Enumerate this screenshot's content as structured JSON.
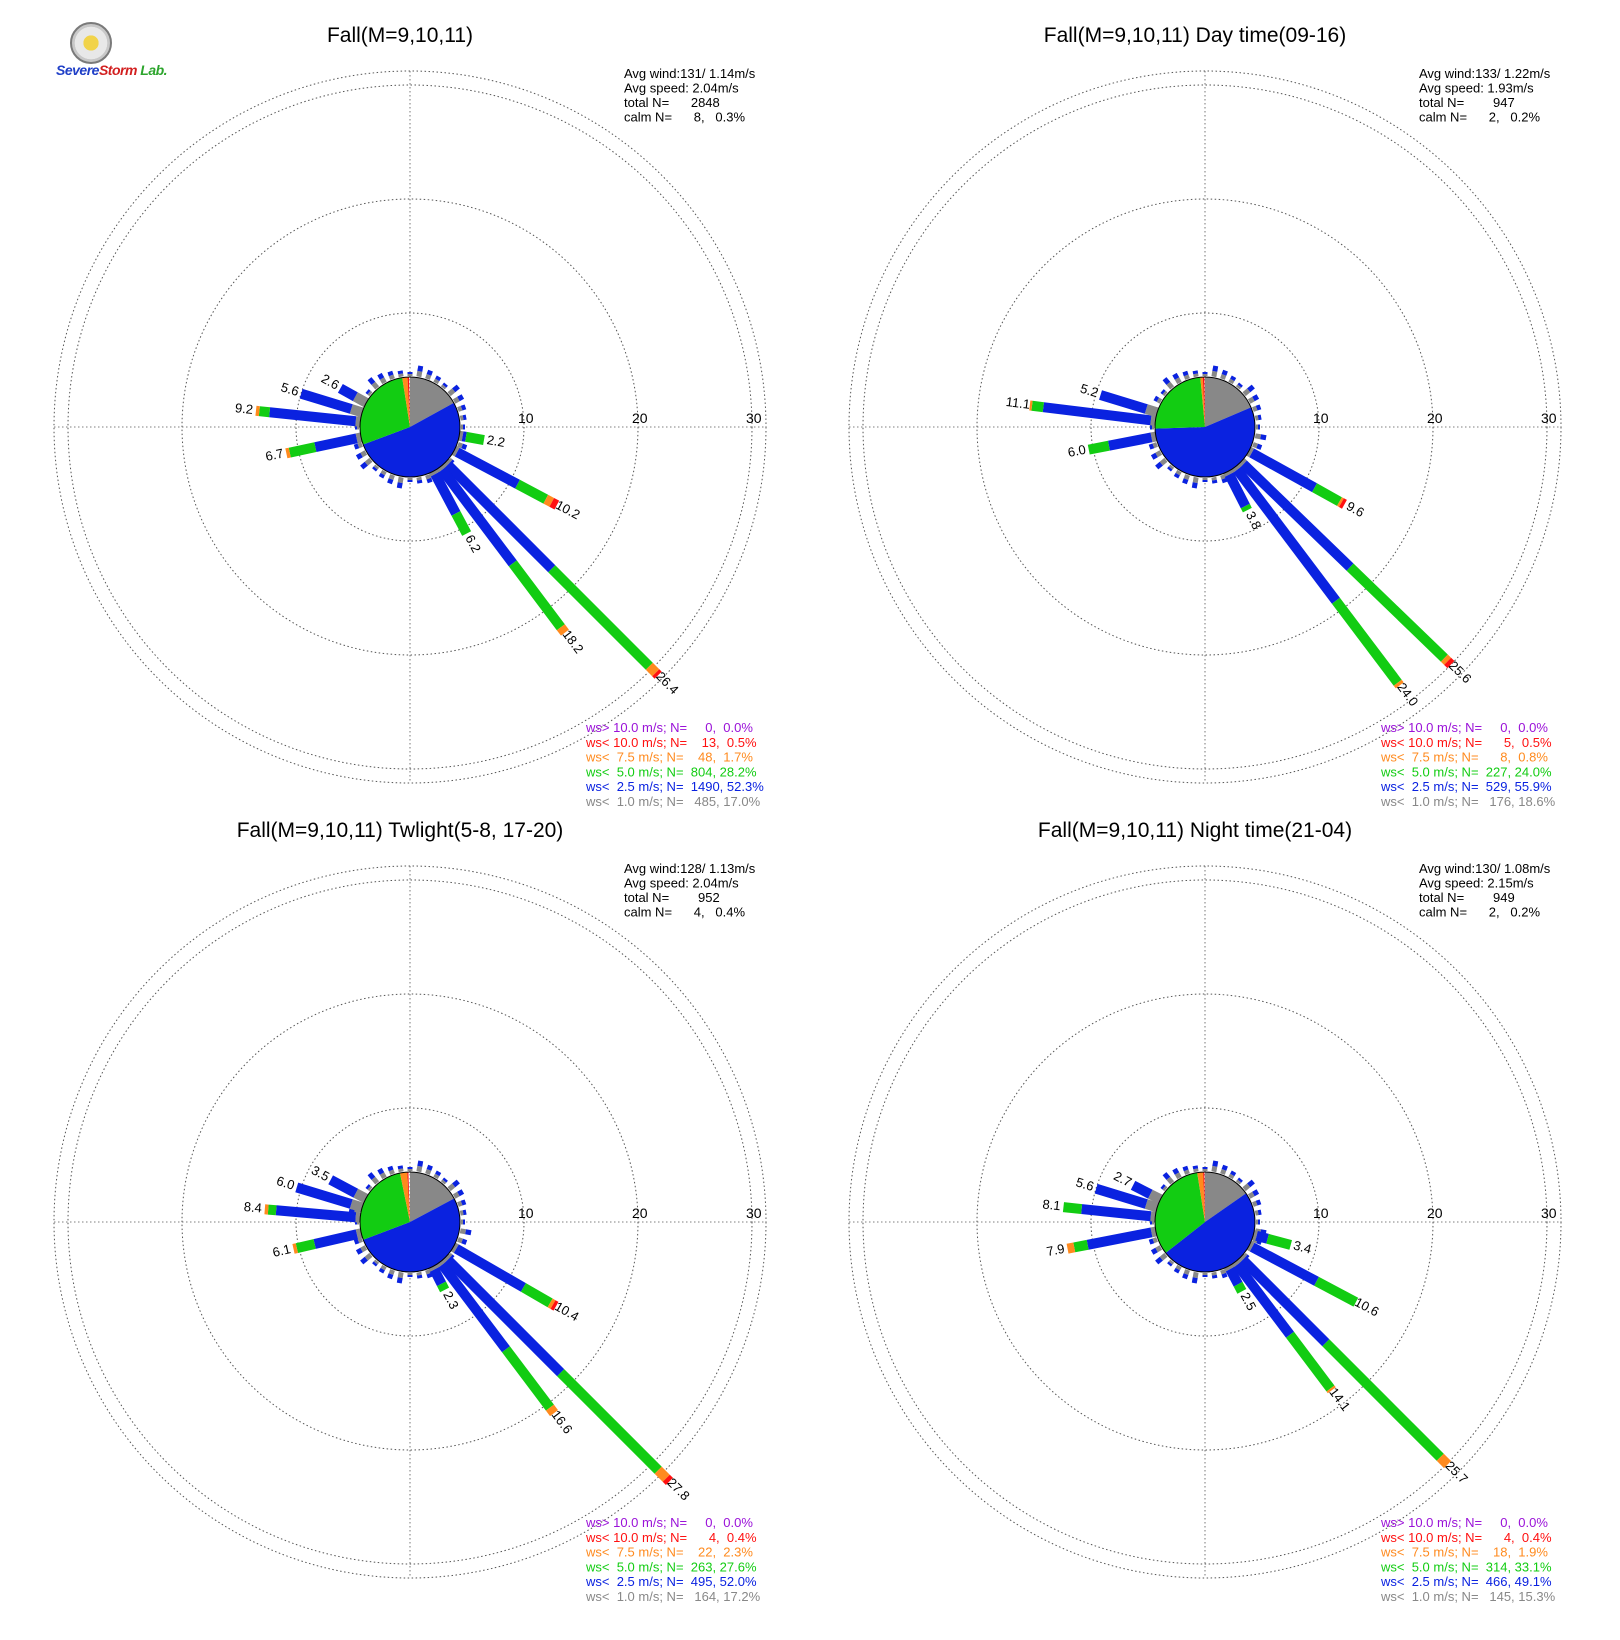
{
  "logo": {
    "text_severe": "Severe",
    "text_storm": "Storm",
    "text_lab": "Lab."
  },
  "colors": {
    "calm_class": "#888888",
    "ws_lt_2_5": "#0a22e0",
    "ws_lt_5_0": "#12cc12",
    "ws_lt_7_5": "#ff8a1e",
    "ws_lt_10_0": "#ff1010",
    "ws_gt_10_0": "#9a12d8"
  },
  "chart_data": [
    {
      "type": "wind-rose",
      "title": "Fall(M=9,10,11)",
      "rings": [
        10,
        20,
        30
      ],
      "stats": [
        "Avg wind:131/ 1.14m/s",
        "Avg speed: 2.04m/s",
        "total N=      2848",
        "calm N=      8,   0.3%"
      ],
      "legend": [
        {
          "text": "ws> 10.0 m/s; N=     0,  0.0%",
          "color": "#9a12d8"
        },
        {
          "text": "ws< 10.0 m/s; N=    13,  0.5%",
          "color": "#ff1010"
        },
        {
          "text": "ws<  7.5 m/s; N=    48,  1.7%",
          "color": "#ff8a1e"
        },
        {
          "text": "ws<  5.0 m/s; N=  804, 28.2%",
          "color": "#12cc12"
        },
        {
          "text": "ws<  2.5 m/s; N=  1490, 52.3%",
          "color": "#0a22e0"
        },
        {
          "text": "ws<  1.0 m/s; N=   485, 17.0%",
          "color": "#888888"
        }
      ],
      "pie": [
        17.0,
        52.3,
        28.2,
        1.7,
        0.5,
        0.0
      ],
      "petals": [
        {
          "dir": 100,
          "total": 2.2,
          "label": "2.2",
          "parts": [
            0.3,
            0.3,
            1.6
          ]
        },
        {
          "dir": 118,
          "total": 10.2,
          "label": "10.2",
          "parts": [
            0.3,
            6.0,
            2.8,
            0.6,
            0.5
          ]
        },
        {
          "dir": 135,
          "total": 26.4,
          "label": "26.4",
          "parts": [
            0.3,
            12.9,
            12.1,
            0.8,
            0.3
          ]
        },
        {
          "dir": 143,
          "total": 18.2,
          "label": "18.2",
          "parts": [
            0.3,
            10.3,
            7.0,
            0.6
          ]
        },
        {
          "dir": 152,
          "total": 6.2,
          "label": "6.2",
          "parts": [
            0.3,
            3.9,
            2.0
          ]
        },
        {
          "dir": 276,
          "total": 9.2,
          "label": "9.2",
          "parts": [
            0.4,
            7.6,
            0.9,
            0.3
          ]
        },
        {
          "dir": 258,
          "total": 6.7,
          "label": "6.7",
          "parts": [
            0.4,
            3.7,
            2.3,
            0.3
          ]
        },
        {
          "dir": 287,
          "total": 5.6,
          "label": "5.6",
          "parts": [
            1.0,
            4.6
          ]
        },
        {
          "dir": 299,
          "total": 2.6,
          "label": "2.6",
          "parts": [
            1.1,
            1.5
          ]
        }
      ]
    },
    {
      "type": "wind-rose",
      "title": "Fall(M=9,10,11) Day time(09-16)",
      "rings": [
        10,
        20,
        30
      ],
      "stats": [
        "Avg wind:133/ 1.22m/s",
        "Avg speed: 1.93m/s",
        "total N=        947",
        "calm N=      2,   0.2%"
      ],
      "legend": [
        {
          "text": "ws> 10.0 m/s; N=     0,  0.0%",
          "color": "#9a12d8"
        },
        {
          "text": "ws< 10.0 m/s; N=      5,  0.5%",
          "color": "#ff1010"
        },
        {
          "text": "ws<  7.5 m/s; N=      8,  0.8%",
          "color": "#ff8a1e"
        },
        {
          "text": "ws<  5.0 m/s; N=  227, 24.0%",
          "color": "#12cc12"
        },
        {
          "text": "ws<  2.5 m/s; N=  529, 55.9%",
          "color": "#0a22e0"
        },
        {
          "text": "ws<  1.0 m/s; N=   176, 18.6%",
          "color": "#888888"
        }
      ],
      "pie": [
        18.6,
        55.9,
        24.0,
        0.8,
        0.5,
        0.0
      ],
      "petals": [
        {
          "dir": 119,
          "total": 9.6,
          "label": "9.6",
          "parts": [
            0.3,
            6.3,
            2.5,
            0.2,
            0.3
          ]
        },
        {
          "dir": 134,
          "total": 25.6,
          "label": "25.6",
          "parts": [
            0.3,
            13.0,
            11.5,
            0.4,
            0.4
          ]
        },
        {
          "dir": 143,
          "total": 24.0,
          "label": "24.0",
          "parts": [
            0.3,
            14.4,
            9.0,
            0.3
          ]
        },
        {
          "dir": 153,
          "total": 3.8,
          "label": "3.8",
          "parts": [
            0.3,
            3.1,
            0.4
          ]
        },
        {
          "dir": 277,
          "total": 11.1,
          "label": "11.1",
          "parts": [
            0.4,
            9.5,
            1.0,
            0.2
          ]
        },
        {
          "dir": 259,
          "total": 6.0,
          "label": "6.0",
          "parts": [
            0.4,
            3.8,
            1.8
          ]
        },
        {
          "dir": 287,
          "total": 5.2,
          "label": "5.2",
          "parts": [
            1.0,
            4.2
          ]
        }
      ]
    },
    {
      "type": "wind-rose",
      "title": "Fall(M=9,10,11) Twlight(5-8, 17-20)",
      "rings": [
        10,
        20,
        30
      ],
      "stats": [
        "Avg wind:128/ 1.13m/s",
        "Avg speed: 2.04m/s",
        "total N=        952",
        "calm N=      4,   0.4%"
      ],
      "legend": [
        {
          "text": "ws> 10.0 m/s; N=     0,  0.0%",
          "color": "#9a12d8"
        },
        {
          "text": "ws< 10.0 m/s; N=      4,  0.4%",
          "color": "#ff1010"
        },
        {
          "text": "ws<  7.5 m/s; N=    22,  2.3%",
          "color": "#ff8a1e"
        },
        {
          "text": "ws<  5.0 m/s; N=  263, 27.6%",
          "color": "#12cc12"
        },
        {
          "text": "ws<  2.5 m/s; N=  495, 52.0%",
          "color": "#0a22e0"
        },
        {
          "text": "ws<  1.0 m/s; N=   164, 17.2%",
          "color": "#888888"
        }
      ],
      "pie": [
        17.2,
        52.0,
        27.6,
        2.3,
        0.4,
        0.0
      ],
      "petals": [
        {
          "dir": 120,
          "total": 10.4,
          "label": "10.4",
          "parts": [
            0.3,
            6.8,
            2.7,
            0.3,
            0.3
          ]
        },
        {
          "dir": 135,
          "total": 27.8,
          "label": "27.8",
          "parts": [
            0.3,
            14.0,
            12.1,
            1.0,
            0.4
          ]
        },
        {
          "dir": 143,
          "total": 16.6,
          "label": "16.6",
          "parts": [
            0.3,
            9.3,
            6.4,
            0.6
          ]
        },
        {
          "dir": 153,
          "total": 2.3,
          "label": "2.3",
          "parts": [
            0.3,
            1.4,
            0.6
          ]
        },
        {
          "dir": 275,
          "total": 8.4,
          "label": "8.4",
          "parts": [
            0.4,
            7.0,
            0.7,
            0.3
          ]
        },
        {
          "dir": 257,
          "total": 6.1,
          "label": "6.1",
          "parts": [
            0.4,
            3.8,
            1.6,
            0.3
          ]
        },
        {
          "dir": 287,
          "total": 6.0,
          "label": "6.0",
          "parts": [
            1.0,
            5.0
          ]
        },
        {
          "dir": 298,
          "total": 3.5,
          "label": "3.5",
          "parts": [
            1.0,
            2.5
          ]
        }
      ]
    },
    {
      "type": "wind-rose",
      "title": "Fall(M=9,10,11) Night time(21-04)",
      "rings": [
        10,
        20,
        30
      ],
      "stats": [
        "Avg wind:130/ 1.08m/s",
        "Avg speed: 2.15m/s",
        "total N=        949",
        "calm N=      2,   0.2%"
      ],
      "legend": [
        {
          "text": "ws> 10.0 m/s; N=     0,  0.0%",
          "color": "#9a12d8"
        },
        {
          "text": "ws< 10.0 m/s; N=      4,  0.4%",
          "color": "#ff1010"
        },
        {
          "text": "ws<  7.5 m/s; N=    18,  1.9%",
          "color": "#ff8a1e"
        },
        {
          "text": "ws<  5.0 m/s; N=  314, 33.1%",
          "color": "#12cc12"
        },
        {
          "text": "ws<  2.5 m/s; N=  466, 49.1%",
          "color": "#0a22e0"
        },
        {
          "text": "ws<  1.0 m/s; N=   145, 15.3%",
          "color": "#888888"
        }
      ],
      "pie": [
        15.3,
        49.1,
        33.1,
        1.9,
        0.4,
        0.0
      ],
      "petals": [
        {
          "dir": 105,
          "total": 3.4,
          "label": "3.4",
          "parts": [
            0.3,
            1.0,
            2.1
          ]
        },
        {
          "dir": 118,
          "total": 10.6,
          "label": "10.6",
          "parts": [
            0.3,
            6.4,
            3.9
          ]
        },
        {
          "dir": 135,
          "total": 25.7,
          "label": "25.7",
          "parts": [
            0.3,
            10.3,
            14.2,
            0.9
          ]
        },
        {
          "dir": 143,
          "total": 14.1,
          "label": "14.1",
          "parts": [
            0.3,
            7.7,
            5.9,
            0.2
          ]
        },
        {
          "dir": 152,
          "total": 2.5,
          "label": "2.5",
          "parts": [
            0.3,
            1.5,
            0.7
          ]
        },
        {
          "dir": 276,
          "total": 8.1,
          "label": "8.1",
          "parts": [
            0.4,
            6.1,
            1.6
          ]
        },
        {
          "dir": 259,
          "total": 7.9,
          "label": "7.9",
          "parts": [
            0.4,
            5.7,
            1.2,
            0.6
          ]
        },
        {
          "dir": 287,
          "total": 5.6,
          "label": "5.6",
          "parts": [
            1.0,
            4.6
          ]
        },
        {
          "dir": 297,
          "total": 2.7,
          "label": "2.7",
          "parts": [
            1.0,
            1.7
          ]
        }
      ]
    }
  ]
}
